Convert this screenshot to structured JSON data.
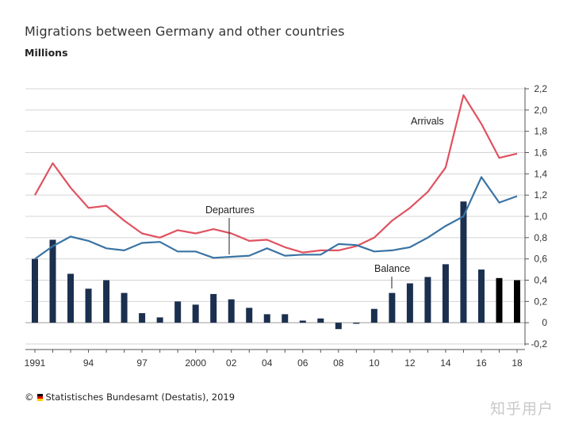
{
  "header": {
    "title": "Migrations between Germany and other countries",
    "unit": "Millions"
  },
  "source": {
    "copyright_symbol": "©",
    "text": "Statistisches Bundesamt (Destatis), 2019",
    "flag_colors": [
      "#000000",
      "#dd0000",
      "#ffce00"
    ]
  },
  "watermark": "知乎用户",
  "chart_data": {
    "type": "bar+line",
    "title": "Migrations between Germany and other countries",
    "ylabel": "Millions",
    "ylim": [
      -0.2,
      2.2
    ],
    "y_ticks": [
      -0.2,
      0,
      0.2,
      0.4,
      0.6,
      0.8,
      1.0,
      1.2,
      1.4,
      1.6,
      1.8,
      2.0,
      2.2
    ],
    "y_tick_labels": [
      "-0,2",
      "0",
      "0,2",
      "0,4",
      "0,6",
      "0,8",
      "1,0",
      "1,2",
      "1,4",
      "1,6",
      "1,8",
      "2,0",
      "2,2"
    ],
    "x": [
      1991,
      1992,
      1993,
      1994,
      1995,
      1996,
      1997,
      1998,
      1999,
      2000,
      2001,
      2002,
      2003,
      2004,
      2005,
      2006,
      2007,
      2008,
      2009,
      2010,
      2011,
      2012,
      2013,
      2014,
      2015,
      2016,
      2017,
      2018
    ],
    "x_tick_labels": [
      {
        "year": 1991,
        "label": "1991"
      },
      {
        "year": 1994,
        "label": "94"
      },
      {
        "year": 1997,
        "label": "97"
      },
      {
        "year": 2000,
        "label": "2000"
      },
      {
        "year": 2002,
        "label": "02"
      },
      {
        "year": 2004,
        "label": "04"
      },
      {
        "year": 2006,
        "label": "06"
      },
      {
        "year": 2008,
        "label": "08"
      },
      {
        "year": 2010,
        "label": "10"
      },
      {
        "year": 2012,
        "label": "12"
      },
      {
        "year": 2014,
        "label": "14"
      },
      {
        "year": 2016,
        "label": "16"
      },
      {
        "year": 2018,
        "label": "18"
      }
    ],
    "series": [
      {
        "name": "Arrivals",
        "kind": "line",
        "color": "#e05260",
        "values": [
          1.2,
          1.5,
          1.27,
          1.08,
          1.1,
          0.96,
          0.84,
          0.8,
          0.87,
          0.84,
          0.88,
          0.84,
          0.77,
          0.78,
          0.71,
          0.66,
          0.68,
          0.68,
          0.72,
          0.8,
          0.96,
          1.08,
          1.23,
          1.46,
          2.14,
          1.87,
          1.55,
          1.59
        ]
      },
      {
        "name": "Departures",
        "kind": "line",
        "color": "#3a74a4",
        "values": [
          0.6,
          0.72,
          0.81,
          0.77,
          0.7,
          0.68,
          0.75,
          0.76,
          0.67,
          0.67,
          0.61,
          0.62,
          0.63,
          0.7,
          0.63,
          0.64,
          0.64,
          0.74,
          0.73,
          0.67,
          0.68,
          0.71,
          0.8,
          0.91,
          1.0,
          1.37,
          1.13,
          1.19
        ]
      },
      {
        "name": "Balance",
        "kind": "bar",
        "color": "#1b2f4e",
        "bar_colors_by_year": {
          "2017": "#000000",
          "2018": "#000000"
        },
        "values": [
          0.6,
          0.78,
          0.46,
          0.32,
          0.4,
          0.28,
          0.09,
          0.05,
          0.2,
          0.17,
          0.27,
          0.22,
          0.14,
          0.08,
          0.08,
          0.02,
          0.04,
          -0.06,
          -0.01,
          0.13,
          0.28,
          0.37,
          0.43,
          0.55,
          1.14,
          0.5,
          0.42,
          0.4
        ]
      }
    ],
    "annotations": [
      {
        "text": "Arrivals",
        "series": "Arrivals"
      },
      {
        "text": "Departures",
        "series": "Departures"
      },
      {
        "text": "Balance",
        "series": "Balance"
      }
    ]
  }
}
